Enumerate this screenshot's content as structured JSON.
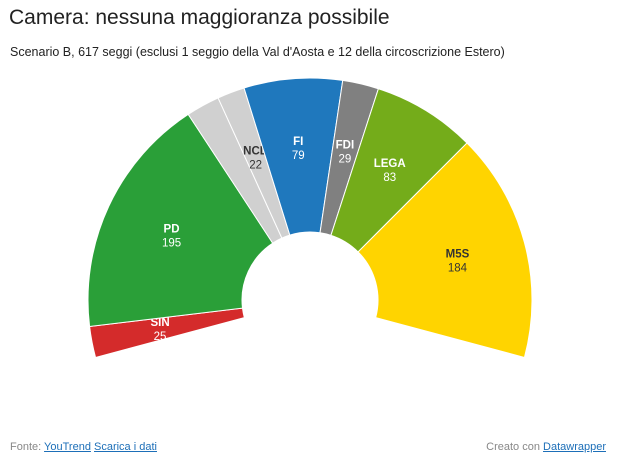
{
  "title": "Camera: nessuna maggioranza possibile",
  "subtitle": "Scenario B, 617 seggi (esclusi 1 seggio della Val d'Aosta e 12 della circoscrizione Estero)",
  "chart_data": {
    "type": "pie",
    "variant": "semicircle-parliament",
    "total": 617,
    "slices": [
      {
        "label": "SIN",
        "value": 25,
        "color": "#d42b2b",
        "text_color": "#ffffff"
      },
      {
        "label": "PD",
        "value": 195,
        "color": "#2a9f38",
        "text_color": "#ffffff"
      },
      {
        "label": "",
        "value": 27,
        "color": "#d0d0d0",
        "text_color": "#333333"
      },
      {
        "label": "NCD",
        "value": 22,
        "color": "#d0d0d0",
        "text_color": "#333333"
      },
      {
        "label": "FI",
        "value": 79,
        "color": "#1f78bd",
        "text_color": "#ffffff"
      },
      {
        "label": "FDI",
        "value": 29,
        "color": "#808080",
        "text_color": "#ffffff"
      },
      {
        "label": "LEGA",
        "value": 83,
        "color": "#74ac1a",
        "text_color": "#ffffff"
      },
      {
        "label": "M5S",
        "value": 184,
        "color": "#ffd400",
        "text_color": "#333333"
      }
    ]
  },
  "footer": {
    "source_prefix": "Fonte:",
    "source_link": "YouTrend",
    "download_link": "Scarica i dati",
    "created_prefix": "Creato con",
    "created_link": "Datawrapper"
  }
}
